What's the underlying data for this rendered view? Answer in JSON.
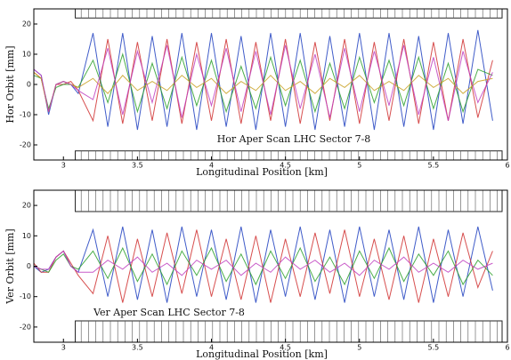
{
  "chart_data": [
    {
      "type": "line",
      "annotation": "Hor Aper Scan LHC Sector 7-8",
      "xlabel": "Longitudinal Position [km]",
      "ylabel": "Hor Orbit [mm]",
      "xlim": [
        2.8,
        6.0
      ],
      "ylim": [
        -25,
        25
      ],
      "xticks": [
        3.0,
        3.5,
        4.0,
        4.5,
        5.0,
        5.5,
        6.0
      ],
      "yticks": [
        -20,
        -10,
        0,
        10,
        20
      ],
      "aperture_upper": 22,
      "aperture_lower": -22,
      "x": [
        2.8,
        2.85,
        2.9,
        2.95,
        3.0,
        3.05,
        3.1,
        3.2,
        3.3,
        3.4,
        3.5,
        3.6,
        3.7,
        3.8,
        3.9,
        4.0,
        4.1,
        4.2,
        4.3,
        4.4,
        4.5,
        4.6,
        4.7,
        4.8,
        4.9,
        5.0,
        5.1,
        5.2,
        5.3,
        5.4,
        5.5,
        5.6,
        5.7,
        5.8,
        5.9
      ],
      "series": [
        {
          "color": "#1f3fbf",
          "values": [
            5,
            3,
            -10,
            0,
            1,
            0,
            -3,
            17,
            -14,
            17,
            -15,
            16,
            -14,
            17,
            -15,
            17,
            -14,
            16,
            -15,
            17,
            -14,
            17,
            -15,
            16,
            -14,
            17,
            -15,
            17,
            -14,
            16,
            -15,
            17,
            -13,
            18,
            -12
          ]
        },
        {
          "color": "#d03030",
          "values": [
            4,
            2,
            -9,
            0,
            0,
            1,
            -2,
            -12,
            15,
            -13,
            14,
            -12,
            15,
            -13,
            14,
            -12,
            15,
            -13,
            14,
            -12,
            15,
            -13,
            14,
            -12,
            15,
            -13,
            14,
            -12,
            15,
            -13,
            14,
            -12,
            15,
            -11,
            8
          ]
        },
        {
          "color": "#2ca02c",
          "values": [
            3,
            2,
            -8,
            -1,
            0,
            0,
            -1,
            8,
            -6,
            10,
            -9,
            7,
            -8,
            9,
            -7,
            8,
            -9,
            6,
            -8,
            9,
            -7,
            8,
            -9,
            7,
            -8,
            9,
            -6,
            8,
            -7,
            9,
            -8,
            7,
            -9,
            5,
            3
          ]
        },
        {
          "color": "#c8a020",
          "values": [
            4,
            2,
            -9,
            0,
            1,
            0,
            -1,
            2,
            -3,
            3,
            -2,
            1,
            -2,
            3,
            -1,
            2,
            -3,
            1,
            -2,
            3,
            -2,
            1,
            -3,
            2,
            -1,
            3,
            -2,
            1,
            -2,
            3,
            -1,
            2,
            -3,
            1,
            2
          ]
        },
        {
          "color": "#c040c0",
          "values": [
            5,
            3,
            -9,
            0,
            1,
            0,
            -2,
            -5,
            12,
            -10,
            11,
            -6,
            13,
            -11,
            10,
            -7,
            12,
            -9,
            11,
            -10,
            13,
            -8,
            10,
            -11,
            12,
            -9,
            11,
            -7,
            13,
            -10,
            9,
            -12,
            11,
            -6,
            4
          ]
        }
      ]
    },
    {
      "type": "line",
      "annotation": "Ver Aper Scan LHC Sector 7-8",
      "xlabel": "Longitudinal Position [km]",
      "ylabel": "Ver Orbit [mm]",
      "xlim": [
        2.8,
        6.0
      ],
      "ylim": [
        -25,
        25
      ],
      "xticks": [
        3.0,
        3.5,
        4.0,
        4.5,
        5.0,
        5.5,
        6.0
      ],
      "yticks": [
        -20,
        -10,
        0,
        10,
        20
      ],
      "aperture_upper": 18,
      "aperture_lower": -18,
      "x": [
        2.8,
        2.85,
        2.9,
        2.95,
        3.0,
        3.05,
        3.1,
        3.2,
        3.3,
        3.4,
        3.5,
        3.6,
        3.7,
        3.8,
        3.9,
        4.0,
        4.1,
        4.2,
        4.3,
        4.4,
        4.5,
        4.6,
        4.7,
        4.8,
        4.9,
        5.0,
        5.1,
        5.2,
        5.3,
        5.4,
        5.5,
        5.6,
        5.7,
        5.8,
        5.9
      ],
      "series": [
        {
          "color": "#1f3fbf",
          "values": [
            0,
            -2,
            -1,
            3,
            5,
            0,
            -2,
            12,
            -10,
            13,
            -11,
            12,
            -12,
            13,
            -10,
            12,
            -11,
            13,
            -12,
            12,
            -10,
            13,
            -11,
            12,
            -12,
            13,
            -10,
            12,
            -11,
            13,
            -12,
            12,
            -10,
            13,
            -8
          ]
        },
        {
          "color": "#d03030",
          "values": [
            1,
            -2,
            -2,
            3,
            5,
            1,
            -3,
            -9,
            10,
            -12,
            9,
            -10,
            11,
            -9,
            12,
            -10,
            9,
            -11,
            10,
            -12,
            9,
            -10,
            11,
            -9,
            12,
            -10,
            9,
            -11,
            10,
            -12,
            9,
            -10,
            11,
            -7,
            5
          ]
        },
        {
          "color": "#2ca02c",
          "values": [
            0,
            -1,
            -2,
            2,
            4,
            0,
            -1,
            5,
            -4,
            6,
            -5,
            4,
            -6,
            5,
            -3,
            6,
            -5,
            4,
            -6,
            5,
            -4,
            6,
            -5,
            3,
            -6,
            5,
            -4,
            6,
            -5,
            4,
            -3,
            5,
            -6,
            2,
            -3
          ]
        },
        {
          "color": "#c040c0",
          "values": [
            0,
            -1,
            -1,
            3,
            5,
            0,
            -2,
            -2,
            2,
            -1,
            3,
            -2,
            1,
            -3,
            2,
            -1,
            2,
            -3,
            1,
            -2,
            3,
            -1,
            2,
            -2,
            1,
            -3,
            2,
            -1,
            3,
            -2,
            1,
            -2,
            2,
            -1,
            1
          ]
        }
      ]
    }
  ]
}
